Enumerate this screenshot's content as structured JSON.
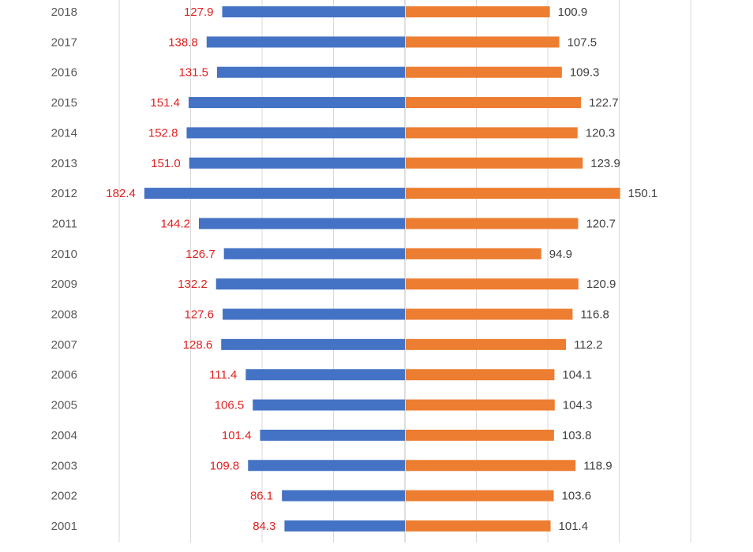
{
  "chart_data": {
    "type": "bar",
    "orientation": "horizontal-diverging",
    "categories": [
      "2018",
      "2017",
      "2016",
      "2015",
      "2014",
      "2013",
      "2012",
      "2011",
      "2010",
      "2009",
      "2008",
      "2007",
      "2006",
      "2005",
      "2004",
      "2003",
      "2002",
      "2001"
    ],
    "series": [
      {
        "values": [
          127.9,
          138.8,
          131.5,
          151.4,
          152.8,
          151.0,
          182.4,
          144.2,
          126.7,
          132.2,
          127.6,
          128.6,
          111.4,
          106.5,
          101.4,
          109.8,
          86.1,
          84.3
        ],
        "labels": [
          "127.9",
          "138.8",
          "131.5",
          "151.4",
          "152.8",
          "151.0",
          "182.4",
          "144.2",
          "126.7",
          "132.2",
          "127.6",
          "128.6",
          "111.4",
          "106.5",
          "101.4",
          "109.8",
          "86.1",
          "84.3"
        ],
        "side": "left"
      },
      {
        "values": [
          100.9,
          107.5,
          109.3,
          122.7,
          120.3,
          123.9,
          150.1,
          120.7,
          94.9,
          120.9,
          116.8,
          112.2,
          104.1,
          104.3,
          103.8,
          118.9,
          103.6,
          101.4
        ],
        "labels": [
          "100.9",
          "107.5",
          "109.3",
          "122.7",
          "120.3",
          "123.9",
          "150.1",
          "120.7",
          "94.9",
          "120.9",
          "116.8",
          "112.2",
          "104.1",
          "104.3",
          "103.8",
          "118.9",
          "103.6",
          "101.4"
        ],
        "side": "right"
      }
    ],
    "xlim": [
      -200,
      200
    ],
    "grid": true,
    "title": "",
    "xlabel": "",
    "ylabel": ""
  },
  "colors": {
    "left_bar": "#4472C4",
    "right_bar": "#ED7D31",
    "left_label": "#E02020",
    "right_label": "#404040",
    "grid": "#D9D9D9",
    "axis": "#BFBFBF"
  }
}
